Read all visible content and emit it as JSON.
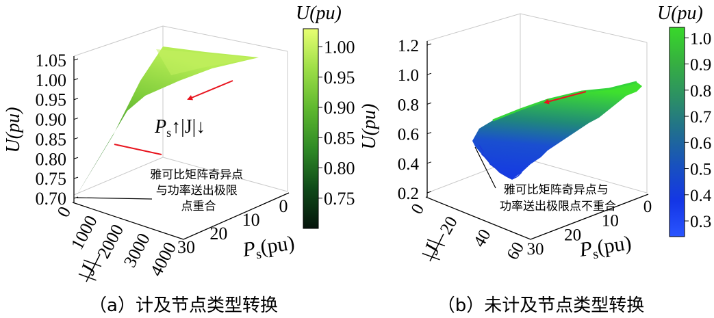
{
  "chart_data": [
    {
      "id": "a",
      "type": "surface3d",
      "caption": "（a）计及节点类型转换",
      "zlabel": "U(pu)",
      "z_ticks": [
        "0.70",
        "0.75",
        "0.80",
        "0.85",
        "0.90",
        "0.95",
        "1.00",
        "1.05"
      ],
      "zlim": [
        0.7,
        1.05
      ],
      "ps_label": "P",
      "ps_sub": "s",
      "ps_unit": "(pu)",
      "ps_ticks": [
        "0",
        "10",
        "20",
        "30"
      ],
      "psmax": 30,
      "j_label": "|J|",
      "j_ticks": [
        "0",
        "1000",
        "2000",
        "3000",
        "4000"
      ],
      "jmax": 4000,
      "colorbar": {
        "title": "U(pu)",
        "ticks": [
          "0.75",
          "0.80",
          "0.85",
          "0.90",
          "0.95",
          "1.00"
        ],
        "range": [
          0.7,
          1.03
        ],
        "colors": [
          "#05140b",
          "#0f4a19",
          "#2f8a26",
          "#5fb82f",
          "#9dde47",
          "#e8ff72"
        ]
      },
      "surface": {
        "u_min": 0.7,
        "u_max": 1.03,
        "ps_max_reached": 30,
        "j_max_reached": 2900
      },
      "annotation_trend": {
        "p": "P",
        "sub": "s",
        "rest": "↑|J|↓"
      },
      "annotation_note": [
        "雅可比矩阵奇异点",
        "与功率送出极限",
        "点重合"
      ]
    },
    {
      "id": "b",
      "type": "surface3d",
      "caption": "（b）未计及节点类型转换",
      "zlabel": "U(pu)",
      "z_ticks": [
        "0.2",
        "0.4",
        "0.6",
        "0.8",
        "1.0",
        "1.2"
      ],
      "zlim": [
        0.2,
        1.2
      ],
      "ps_label": "P",
      "ps_sub": "s",
      "ps_unit": "(pu)",
      "ps_ticks": [
        "0",
        "10",
        "20",
        "30"
      ],
      "psmax": 30,
      "j_label": "|J|",
      "j_ticks": [
        "0",
        "20",
        "40",
        "60"
      ],
      "jmax": 60,
      "colorbar": {
        "title": "U(pu)",
        "ticks": [
          "0.3",
          "0.4",
          "0.5",
          "0.6",
          "0.7",
          "0.8",
          "0.9",
          "1.0"
        ],
        "range": [
          0.24,
          1.04
        ],
        "colors": [
          "#2a55ff",
          "#1436e6",
          "#1850c0",
          "#206e90",
          "#2c9064",
          "#36b040",
          "#38d82a"
        ]
      },
      "surface": {
        "u_min": 0.25,
        "u_max": 0.95,
        "ps_max_reached": 30,
        "j_max_reached": 30
      },
      "annotation_note": [
        "雅可比矩阵奇异点与",
        "功率送出极限点不重合"
      ]
    }
  ]
}
